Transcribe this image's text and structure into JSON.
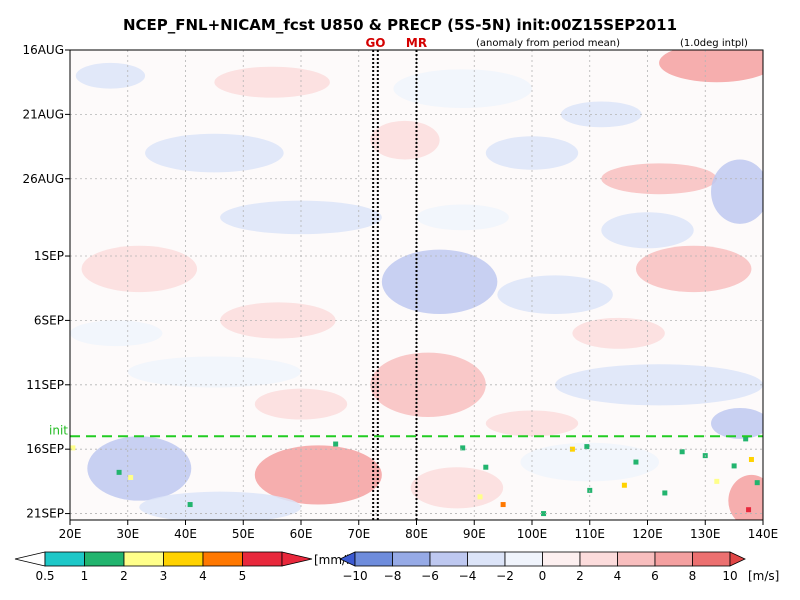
{
  "chart_data": {
    "type": "heatmap",
    "title": "NCEP_FNL+NICAM_fcst U850 & PRECP (5S-5N) init:00Z15SEP2011",
    "annotation_left": "(anomaly from period mean)",
    "annotation_right": "(1.0deg intpl)",
    "x_ticks": [
      "20E",
      "30E",
      "40E",
      "50E",
      "60E",
      "70E",
      "80E",
      "90E",
      "100E",
      "110E",
      "120E",
      "130E",
      "140E"
    ],
    "x_values": [
      20,
      30,
      40,
      50,
      60,
      70,
      80,
      90,
      100,
      110,
      120,
      130,
      140
    ],
    "xlim": [
      20,
      140
    ],
    "y_ticks": [
      "16AUG",
      "21AUG",
      "26AUG",
      "1SEP",
      "6SEP",
      "11SEP",
      "16SEP",
      "21SEP"
    ],
    "y_days": [
      0,
      5,
      10,
      16,
      21,
      26,
      31,
      36
    ],
    "ylim_days": [
      0,
      36.5
    ],
    "init_label": "init",
    "init_day": 30.0,
    "markers": [
      {
        "label": "GO",
        "lon": 72.5,
        "lon2": 73.3
      },
      {
        "label": "MR",
        "lon": 80.0
      }
    ],
    "precip_colorbar": {
      "unit": "[mm/h]",
      "ticks": [
        "0.5",
        "1",
        "2",
        "3",
        "4",
        "5"
      ],
      "colors": [
        "#ffffff",
        "#1ec8c8",
        "#22b46e",
        "#ffff8a",
        "#ffd200",
        "#ff7800",
        "#e8283c"
      ]
    },
    "u850_colorbar": {
      "unit": "[m/s]",
      "ticks": [
        "−10",
        "−8",
        "−6",
        "−4",
        "−2",
        "0",
        "2",
        "4",
        "6",
        "8",
        "10"
      ],
      "colors": [
        "#3c5ad2",
        "#6e8cdc",
        "#96aae6",
        "#bec8f0",
        "#dce4f8",
        "#f0f4fc",
        "#fdf0f0",
        "#fcdcdc",
        "#f8bebe",
        "#f4a0a0",
        "#ec7070",
        "#e04646"
      ]
    },
    "u850_regions": [
      {
        "lon": 27,
        "day": 2,
        "rx": 6,
        "ry": 1.0,
        "v": -3
      },
      {
        "lon": 55,
        "day": 2.5,
        "rx": 10,
        "ry": 1.2,
        "v": 3
      },
      {
        "lon": 88,
        "day": 3,
        "rx": 12,
        "ry": 1.5,
        "v": -2
      },
      {
        "lon": 132,
        "day": 1,
        "rx": 10,
        "ry": 1.5,
        "v": 6
      },
      {
        "lon": 112,
        "day": 5,
        "rx": 7,
        "ry": 1.0,
        "v": -3
      },
      {
        "lon": 45,
        "day": 8,
        "rx": 12,
        "ry": 1.5,
        "v": -3
      },
      {
        "lon": 100,
        "day": 8,
        "rx": 8,
        "ry": 1.3,
        "v": -4
      },
      {
        "lon": 78,
        "day": 7,
        "rx": 6,
        "ry": 1.5,
        "v": 3
      },
      {
        "lon": 122,
        "day": 10,
        "rx": 10,
        "ry": 1.2,
        "v": 4
      },
      {
        "lon": 136,
        "day": 11,
        "rx": 5,
        "ry": 2.5,
        "v": -6
      },
      {
        "lon": 60,
        "day": 13,
        "rx": 14,
        "ry": 1.3,
        "v": -3
      },
      {
        "lon": 88,
        "day": 13,
        "rx": 8,
        "ry": 1.0,
        "v": -2
      },
      {
        "lon": 120,
        "day": 14,
        "rx": 8,
        "ry": 1.4,
        "v": -3
      },
      {
        "lon": 32,
        "day": 17,
        "rx": 10,
        "ry": 1.8,
        "v": 2
      },
      {
        "lon": 128,
        "day": 17,
        "rx": 10,
        "ry": 1.8,
        "v": 4
      },
      {
        "lon": 84,
        "day": 18,
        "rx": 10,
        "ry": 2.5,
        "v": -6
      },
      {
        "lon": 104,
        "day": 19,
        "rx": 10,
        "ry": 1.5,
        "v": -3
      },
      {
        "lon": 56,
        "day": 21,
        "rx": 10,
        "ry": 1.4,
        "v": 2
      },
      {
        "lon": 28,
        "day": 22,
        "rx": 8,
        "ry": 1.0,
        "v": -2
      },
      {
        "lon": 115,
        "day": 22,
        "rx": 8,
        "ry": 1.2,
        "v": 3
      },
      {
        "lon": 45,
        "day": 25,
        "rx": 15,
        "ry": 1.2,
        "v": -2
      },
      {
        "lon": 82,
        "day": 26,
        "rx": 10,
        "ry": 2.5,
        "v": 4
      },
      {
        "lon": 122,
        "day": 26,
        "rx": 18,
        "ry": 1.6,
        "v": -3
      },
      {
        "lon": 60,
        "day": 27.5,
        "rx": 8,
        "ry": 1.2,
        "v": 3
      },
      {
        "lon": 100,
        "day": 29,
        "rx": 8,
        "ry": 1.0,
        "v": 2
      },
      {
        "lon": 136,
        "day": 29,
        "rx": 5,
        "ry": 1.2,
        "v": -5
      },
      {
        "lon": 32,
        "day": 32.5,
        "rx": 9,
        "ry": 2.5,
        "v": -6
      },
      {
        "lon": 63,
        "day": 33,
        "rx": 11,
        "ry": 2.3,
        "v": 6
      },
      {
        "lon": 87,
        "day": 34,
        "rx": 8,
        "ry": 1.6,
        "v": 3
      },
      {
        "lon": 110,
        "day": 32,
        "rx": 12,
        "ry": 1.5,
        "v": -2
      },
      {
        "lon": 138,
        "day": 35,
        "rx": 4,
        "ry": 2.0,
        "v": 7
      },
      {
        "lon": 46,
        "day": 35.5,
        "rx": 14,
        "ry": 1.2,
        "v": -3
      }
    ],
    "precip_cells": [
      {
        "lon": 20.5,
        "day": 30.9,
        "v": 3
      },
      {
        "lon": 28.5,
        "day": 32.8,
        "v": 2
      },
      {
        "lon": 30.5,
        "day": 33.2,
        "v": 3
      },
      {
        "lon": 40.8,
        "day": 35.3,
        "v": 2
      },
      {
        "lon": 66,
        "day": 30.6,
        "v": 2
      },
      {
        "lon": 88,
        "day": 30.9,
        "v": 2
      },
      {
        "lon": 92,
        "day": 32.4,
        "v": 2
      },
      {
        "lon": 91,
        "day": 34.7,
        "v": 3
      },
      {
        "lon": 95,
        "day": 35.3,
        "v": 5
      },
      {
        "lon": 107,
        "day": 31.0,
        "v": 4
      },
      {
        "lon": 109.5,
        "day": 30.8,
        "v": 2
      },
      {
        "lon": 110,
        "day": 34.2,
        "v": 2
      },
      {
        "lon": 116,
        "day": 33.8,
        "v": 4
      },
      {
        "lon": 118,
        "day": 32.0,
        "v": 2
      },
      {
        "lon": 123,
        "day": 34.4,
        "v": 2
      },
      {
        "lon": 126,
        "day": 31.2,
        "v": 2
      },
      {
        "lon": 130,
        "day": 31.5,
        "v": 2
      },
      {
        "lon": 132,
        "day": 33.5,
        "v": 3
      },
      {
        "lon": 135,
        "day": 32.3,
        "v": 2
      },
      {
        "lon": 137,
        "day": 30.2,
        "v": 2
      },
      {
        "lon": 138,
        "day": 31.8,
        "v": 4
      },
      {
        "lon": 139,
        "day": 33.6,
        "v": 2
      },
      {
        "lon": 137.5,
        "day": 35.7,
        "v": 6
      },
      {
        "lon": 102,
        "day": 36.0,
        "v": 2
      }
    ]
  }
}
